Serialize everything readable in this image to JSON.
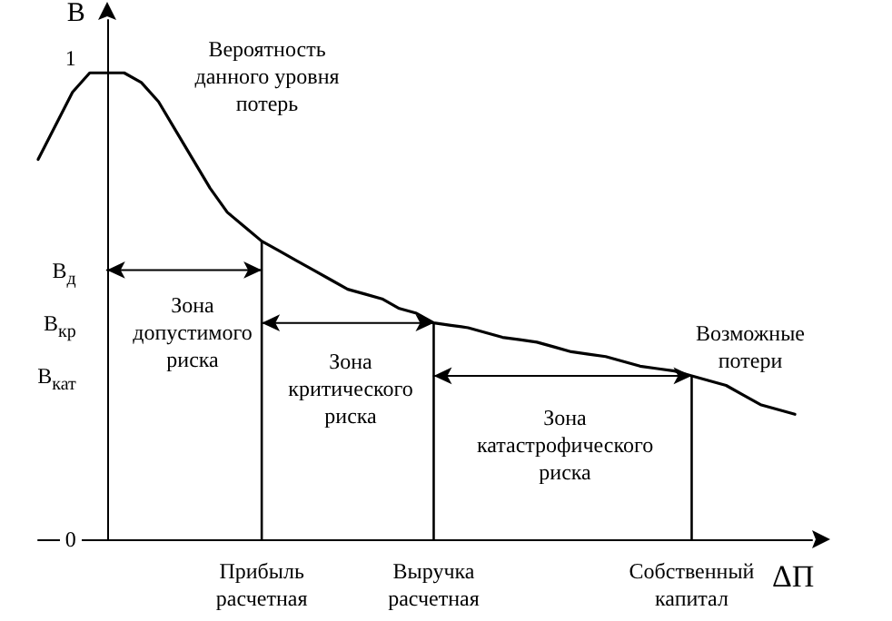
{
  "chart_data": {
    "type": "line",
    "ylabel": "В",
    "xlabel": "ΔП",
    "categories": [
      null,
      null,
      null,
      null,
      null,
      null,
      null,
      null,
      null,
      null,
      null,
      null,
      null,
      "Прибыль\nрасчетная",
      null,
      null,
      null,
      null,
      null,
      null,
      null,
      null,
      null,
      "Выручка\nрасчетная",
      null,
      null,
      null,
      null,
      null,
      null,
      null,
      null,
      null,
      null,
      null,
      null,
      null,
      null,
      "Собственный\nкапитал",
      null,
      null,
      null,
      null,
      null,
      null,
      null
    ],
    "ylim": [
      0,
      1.08
    ],
    "yticks": [
      0,
      {
        "value": 0.56,
        "label": "В$_{д}$"
      },
      {
        "value": 0.45,
        "label": "В$_{кр}$"
      },
      {
        "value": 0.34,
        "label": "В$_{кат}$"
      },
      1
    ],
    "grid": false,
    "series": [
      {
        "color": "#000000",
        "values": [
          0.79,
          0.86,
          0.93,
          0.97,
          0.97,
          0.97,
          0.95,
          0.91,
          0.85,
          0.79,
          0.73,
          0.68,
          0.65,
          0.62,
          0.6,
          0.58,
          0.56,
          0.54,
          0.52,
          0.51,
          0.5,
          0.48,
          0.47,
          0.45,
          0.445,
          0.44,
          0.43,
          0.42,
          0.415,
          0.41,
          0.4,
          0.39,
          0.385,
          0.38,
          0.37,
          0.36,
          0.355,
          0.35,
          0.34,
          0.33,
          0.32,
          0.3,
          0.28,
          0.27,
          0.26,
          null
        ]
      },
      {
        "type": "bar",
        "color": "#000000",
        "values": [
          null,
          null,
          null,
          null,
          null,
          null,
          null,
          null,
          null,
          null,
          null,
          null,
          null,
          0.62,
          null,
          null,
          null,
          null,
          null,
          null,
          null,
          null,
          null,
          0.45,
          null,
          null,
          null,
          null,
          null,
          null,
          null,
          null,
          null,
          null,
          null,
          null,
          null,
          null,
          0.34,
          null,
          null,
          null,
          null,
          null,
          null,
          null
        ]
      },
      {
        "color": "#000000",
        "values": [
          null,
          null,
          null,
          null,
          0.56,
          0.56,
          0.56,
          0.56,
          0.56,
          0.56,
          0.56,
          0.56,
          0.56,
          0.56,
          null,
          null,
          null,
          null,
          null,
          null,
          null,
          null,
          null,
          null,
          null,
          null,
          null,
          null,
          null,
          null,
          null,
          null,
          null,
          null,
          null,
          null,
          null,
          null,
          null,
          null,
          null,
          null,
          null,
          null,
          null,
          null
        ]
      },
      {
        "color": "#000000",
        "values": [
          null,
          null,
          null,
          null,
          null,
          null,
          null,
          null,
          null,
          null,
          null,
          null,
          null,
          0.45,
          0.45,
          0.45,
          0.45,
          0.45,
          0.45,
          0.45,
          0.45,
          0.45,
          0.45,
          0.45,
          null,
          null,
          null,
          null,
          null,
          null,
          null,
          null,
          null,
          null,
          null,
          null,
          null,
          null,
          null,
          null,
          null,
          null,
          null,
          null,
          null,
          null
        ]
      },
      {
        "color": "#000000",
        "values": [
          null,
          null,
          null,
          null,
          null,
          null,
          null,
          null,
          null,
          null,
          null,
          null,
          null,
          null,
          null,
          null,
          null,
          null,
          null,
          null,
          null,
          null,
          null,
          0.34,
          0.34,
          0.34,
          0.34,
          0.34,
          0.34,
          0.34,
          0.34,
          0.34,
          0.34,
          0.34,
          0.34,
          0.34,
          0.34,
          0.34,
          0.34,
          null,
          null,
          null,
          null,
          null,
          null,
          null
        ]
      }
    ],
    "annotations": [
      "Вероятность\nданного уровня\nпотерь",
      "Зона\nдопустимого\nриска",
      "Зона\nкритического\nриска",
      "Зона\nкатастрофического\nриска",
      "Возможные\nпотери"
    ]
  }
}
